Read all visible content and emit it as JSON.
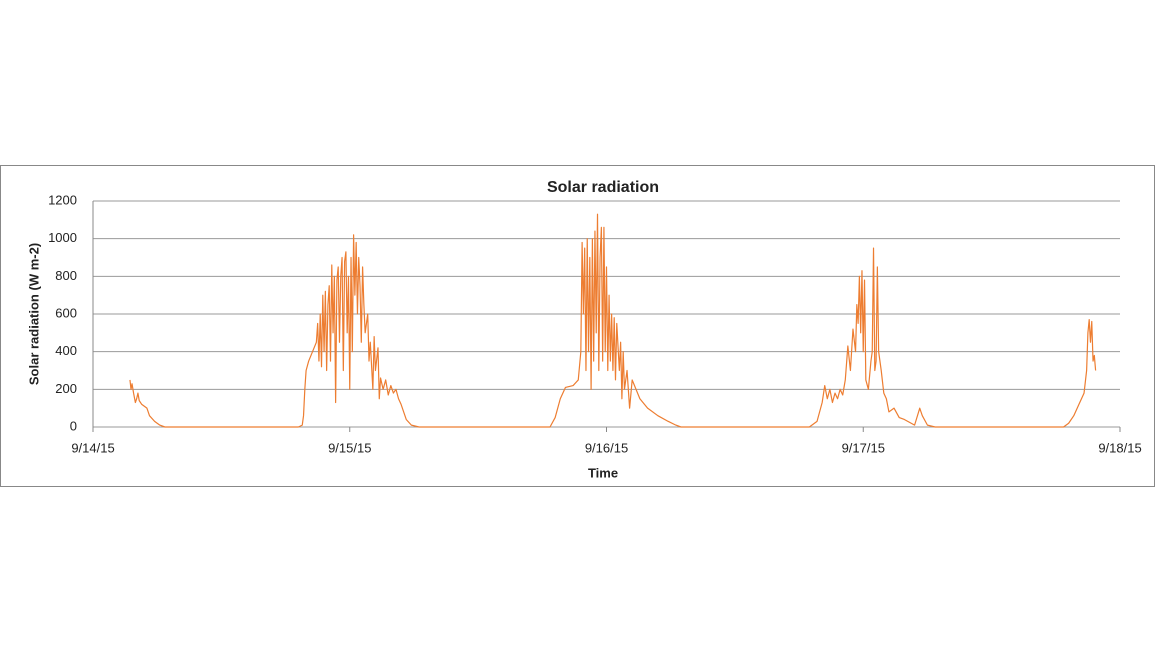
{
  "chart_data": {
    "type": "line",
    "title": "Solar radiation",
    "x_label": "Time",
    "y_label": "Solar radiation (W m-2)",
    "color": "#ed7d31",
    "grid": true,
    "xlim": [
      0,
      4
    ],
    "xticks": [
      {
        "value": 0,
        "label": "9/14/15"
      },
      {
        "value": 1,
        "label": "9/15/15"
      },
      {
        "value": 2,
        "label": "9/16/15"
      },
      {
        "value": 3,
        "label": "9/17/15"
      },
      {
        "value": 4,
        "label": "9/18/15"
      }
    ],
    "ylim": [
      0,
      1200
    ],
    "yticks": [
      0,
      200,
      400,
      600,
      800,
      1000,
      1200
    ],
    "x": [
      0.144,
      0.148,
      0.152,
      0.158,
      0.165,
      0.17,
      0.175,
      0.18,
      0.19,
      0.2,
      0.21,
      0.22,
      0.24,
      0.26,
      0.28,
      0.8,
      0.815,
      0.82,
      0.825,
      0.83,
      0.84,
      0.855,
      0.87,
      0.875,
      0.88,
      0.885,
      0.89,
      0.895,
      0.9,
      0.905,
      0.91,
      0.915,
      0.92,
      0.925,
      0.93,
      0.935,
      0.94,
      0.945,
      0.95,
      0.955,
      0.96,
      0.965,
      0.97,
      0.975,
      0.98,
      0.985,
      0.99,
      0.995,
      1.0,
      1.005,
      1.01,
      1.015,
      1.02,
      1.025,
      1.03,
      1.035,
      1.04,
      1.045,
      1.05,
      1.055,
      1.06,
      1.07,
      1.075,
      1.08,
      1.09,
      1.095,
      1.1,
      1.11,
      1.115,
      1.12,
      1.13,
      1.14,
      1.15,
      1.16,
      1.17,
      1.18,
      1.19,
      1.2,
      1.21,
      1.22,
      1.24,
      1.27,
      1.78,
      1.8,
      1.82,
      1.84,
      1.87,
      1.89,
      1.9,
      1.905,
      1.91,
      1.915,
      1.92,
      1.925,
      1.93,
      1.935,
      1.94,
      1.945,
      1.95,
      1.955,
      1.96,
      1.965,
      1.97,
      1.975,
      1.98,
      1.985,
      1.99,
      1.995,
      2.0,
      2.005,
      2.01,
      2.015,
      2.02,
      2.025,
      2.03,
      2.035,
      2.04,
      2.05,
      2.055,
      2.06,
      2.065,
      2.07,
      2.08,
      2.09,
      2.1,
      2.13,
      2.16,
      2.2,
      2.24,
      2.27,
      2.29,
      2.79,
      2.82,
      2.84,
      2.85,
      2.86,
      2.87,
      2.88,
      2.89,
      2.9,
      2.91,
      2.92,
      2.93,
      2.94,
      2.95,
      2.96,
      2.97,
      2.975,
      2.98,
      2.985,
      2.99,
      2.995,
      3.0,
      3.005,
      3.01,
      3.02,
      3.03,
      3.035,
      3.04,
      3.045,
      3.05,
      3.055,
      3.06,
      3.07,
      3.08,
      3.09,
      3.1,
      3.12,
      3.14,
      3.16,
      3.2,
      3.22,
      3.23,
      3.25,
      3.28,
      3.78,
      3.8,
      3.82,
      3.84,
      3.86,
      3.87,
      3.875,
      3.88,
      3.885,
      3.89,
      3.895,
      3.9,
      3.905
    ],
    "values": [
      250,
      200,
      230,
      180,
      130,
      150,
      180,
      140,
      120,
      110,
      100,
      60,
      30,
      10,
      0,
      0,
      10,
      60,
      200,
      300,
      350,
      400,
      450,
      550,
      350,
      600,
      320,
      700,
      400,
      720,
      300,
      650,
      750,
      350,
      860,
      500,
      800,
      130,
      780,
      850,
      450,
      800,
      900,
      300,
      880,
      930,
      500,
      800,
      200,
      900,
      400,
      1020,
      700,
      980,
      600,
      900,
      750,
      450,
      850,
      650,
      500,
      600,
      350,
      450,
      200,
      480,
      300,
      420,
      150,
      260,
      200,
      250,
      170,
      220,
      180,
      200,
      150,
      120,
      80,
      40,
      10,
      0,
      0,
      50,
      150,
      210,
      220,
      250,
      400,
      980,
      600,
      950,
      300,
      1000,
      400,
      900,
      200,
      1000,
      350,
      1040,
      500,
      1130,
      300,
      900,
      1060,
      350,
      1060,
      400,
      850,
      300,
      700,
      350,
      600,
      300,
      580,
      250,
      550,
      300,
      450,
      150,
      400,
      200,
      300,
      100,
      250,
      150,
      100,
      60,
      30,
      10,
      0,
      0,
      30,
      130,
      220,
      150,
      200,
      130,
      180,
      150,
      200,
      170,
      250,
      430,
      300,
      520,
      400,
      650,
      550,
      800,
      500,
      830,
      400,
      780,
      250,
      200,
      350,
      400,
      950,
      300,
      350,
      850,
      400,
      300,
      180,
      150,
      80,
      100,
      50,
      40,
      10,
      100,
      60,
      10,
      0,
      0,
      20,
      60,
      120,
      180,
      300,
      500,
      570,
      450,
      560,
      350,
      380,
      300
    ]
  }
}
